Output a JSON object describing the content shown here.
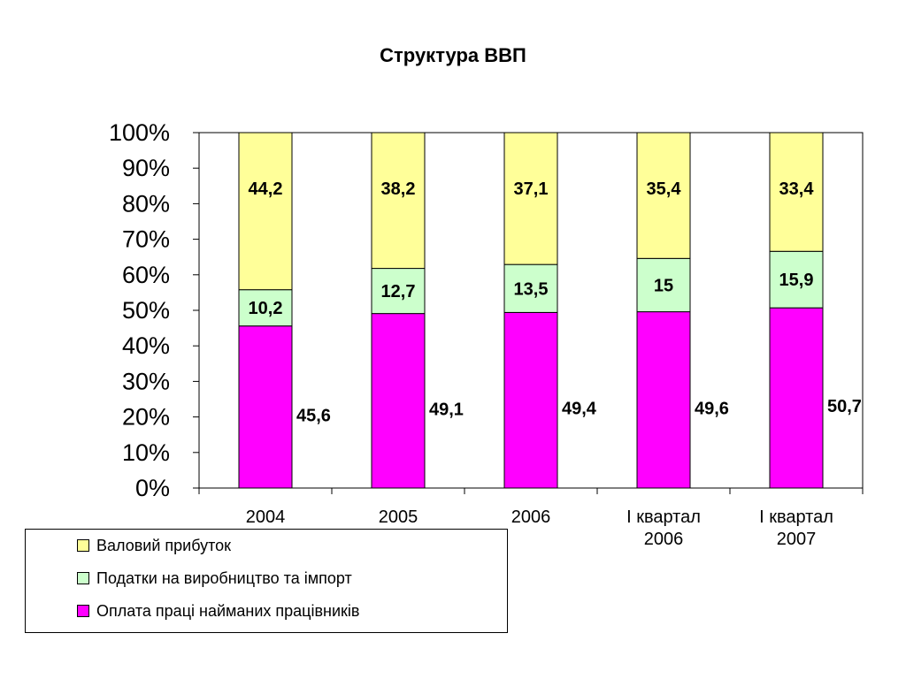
{
  "chart_data": {
    "type": "bar",
    "stacked": true,
    "percent": true,
    "title": "Структура ВВП",
    "categories": [
      [
        "2004"
      ],
      [
        "2005"
      ],
      [
        "2006"
      ],
      [
        "І квартал",
        "2006"
      ],
      [
        "І квартал",
        "2007"
      ]
    ],
    "series": [
      {
        "name": "Оплата праці найманих працівників",
        "color": "#ff00ff",
        "values": [
          45.6,
          49.1,
          49.4,
          49.6,
          50.7
        ],
        "labels": [
          "45,6",
          "49,1",
          "49,4",
          "49,6",
          "50,7"
        ]
      },
      {
        "name": "Податки на виробництво та імпорт",
        "color": "#ccffcc",
        "values": [
          10.2,
          12.7,
          13.5,
          15,
          15.9
        ],
        "labels": [
          "10,2",
          "12,7",
          "13,5",
          "15",
          "15,9"
        ]
      },
      {
        "name": "Валовий прибуток",
        "color": "#ffff99",
        "values": [
          44.2,
          38.2,
          37.1,
          35.4,
          33.4
        ],
        "labels": [
          "44,2",
          "38,2",
          "37,1",
          "35,4",
          "33,4"
        ]
      }
    ],
    "ylim": [
      0,
      100
    ],
    "yticks": [
      "0%",
      "10%",
      "20%",
      "30%",
      "40%",
      "50%",
      "60%",
      "70%",
      "80%",
      "90%",
      "100%"
    ],
    "grid": false,
    "legend_position": "bottom-left"
  },
  "legend_order": [
    2,
    1,
    0
  ]
}
